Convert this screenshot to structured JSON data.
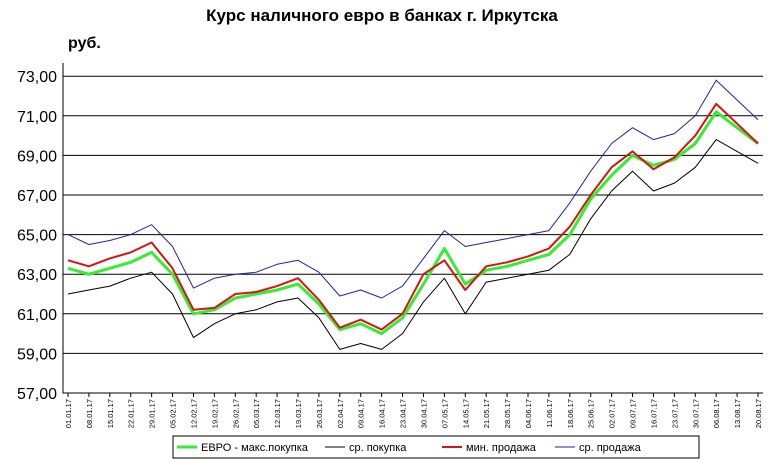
{
  "chart_data": {
    "type": "line",
    "title": "Курс наличного евро в банках г. Иркутска",
    "ylabel": "руб.",
    "xlabel": "",
    "ylim": [
      57,
      73.7
    ],
    "yticks": [
      "57,00",
      "59,00",
      "61,00",
      "63,00",
      "65,00",
      "67,00",
      "69,00",
      "71,00",
      "73,00"
    ],
    "ytick_values": [
      57,
      59,
      61,
      63,
      65,
      67,
      69,
      71,
      73
    ],
    "grid": "horizontal",
    "legend_position": "bottom",
    "categories": [
      "01.01.17",
      "08.01.17",
      "15.01.17",
      "22.01.17",
      "29.01.17",
      "05.02.17",
      "12.02.17",
      "19.02.17",
      "26.02.17",
      "05.03.17",
      "12.03.17",
      "19.03.17",
      "26.03.17",
      "02.04.17",
      "09.04.17",
      "16.04.17",
      "23.04.17",
      "30.04.17",
      "07.05.17",
      "14.05.17",
      "21.05.17",
      "28.05.17",
      "04.06.17",
      "11.06.17",
      "18.06.17",
      "25.06.17",
      "02.07.17",
      "09.07.17",
      "16.07.17",
      "23.07.17",
      "30.07.17",
      "06.08.17",
      "13.08.17",
      "20.08.17"
    ],
    "series": [
      {
        "name": "ЕВРО - макс.покупка",
        "color": "#33ee33",
        "width": 3,
        "values": [
          63.3,
          63.0,
          63.3,
          63.6,
          64.1,
          63.0,
          61.0,
          61.2,
          61.8,
          62.0,
          62.2,
          62.5,
          61.5,
          60.2,
          60.5,
          60.0,
          60.8,
          62.5,
          64.3,
          62.5,
          63.2,
          63.4,
          63.7,
          64.0,
          65.0,
          66.8,
          68.0,
          69.0,
          68.5,
          68.8,
          69.6,
          71.2,
          70.4,
          69.6
        ]
      },
      {
        "name": "ср. покупка",
        "color": "#000000",
        "width": 1,
        "values": [
          62.0,
          62.2,
          62.4,
          62.8,
          63.1,
          62.0,
          59.8,
          60.5,
          61.0,
          61.2,
          61.6,
          61.8,
          60.8,
          59.2,
          59.5,
          59.2,
          60.0,
          61.6,
          62.8,
          61.0,
          62.6,
          62.8,
          63.0,
          63.2,
          64.0,
          65.8,
          67.2,
          68.2,
          67.2,
          67.6,
          68.4,
          69.8,
          69.2,
          68.6
        ]
      },
      {
        "name": "мин. продажа",
        "color": "#dd1111",
        "width": 2,
        "values": [
          63.7,
          63.4,
          63.8,
          64.1,
          64.6,
          63.3,
          61.2,
          61.3,
          62.0,
          62.1,
          62.4,
          62.8,
          61.7,
          60.3,
          60.7,
          60.2,
          61.0,
          63.0,
          63.7,
          62.2,
          63.4,
          63.6,
          63.9,
          64.3,
          65.4,
          67.0,
          68.4,
          69.2,
          68.3,
          68.9,
          70.0,
          71.6,
          70.6,
          69.6
        ]
      },
      {
        "name": "ср. продажа",
        "color": "#2222aa",
        "width": 1,
        "values": [
          65.0,
          64.5,
          64.7,
          65.0,
          65.5,
          64.4,
          62.3,
          62.8,
          63.0,
          63.1,
          63.5,
          63.7,
          63.1,
          61.9,
          62.2,
          61.8,
          62.4,
          63.8,
          65.2,
          64.4,
          64.6,
          64.8,
          65.0,
          65.2,
          66.6,
          68.2,
          69.6,
          70.4,
          69.8,
          70.1,
          71.0,
          72.8,
          71.8,
          70.8
        ]
      }
    ]
  }
}
